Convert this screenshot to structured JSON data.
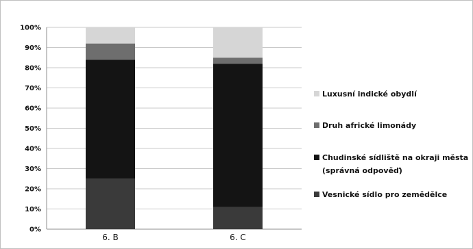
{
  "chart_data": {
    "type": "bar",
    "stacked": true,
    "categories": [
      "6. B",
      "6. C"
    ],
    "series": [
      {
        "name": "Vesnické sídlo pro zemědělce",
        "color": "#3a3a3a",
        "values": [
          25,
          11
        ]
      },
      {
        "name": "Chudinské sídliště na okraji města (správná odpověď)",
        "color": "#141414",
        "values": [
          59,
          71
        ]
      },
      {
        "name": "Druh africké limonády",
        "color": "#6e6e6e",
        "values": [
          8,
          3
        ]
      },
      {
        "name": "Luxusní indické obydlí",
        "color": "#d6d6d6",
        "values": [
          8,
          15
        ]
      }
    ],
    "legend_order": [
      3,
      2,
      1,
      0
    ],
    "ylim": [
      0,
      100
    ],
    "yticks": [
      "0%",
      "10%",
      "20%",
      "30%",
      "40%",
      "50%",
      "60%",
      "70%",
      "80%",
      "90%",
      "100%"
    ],
    "grid": true,
    "legend": "right",
    "title": "",
    "xlabel": "",
    "ylabel": ""
  }
}
